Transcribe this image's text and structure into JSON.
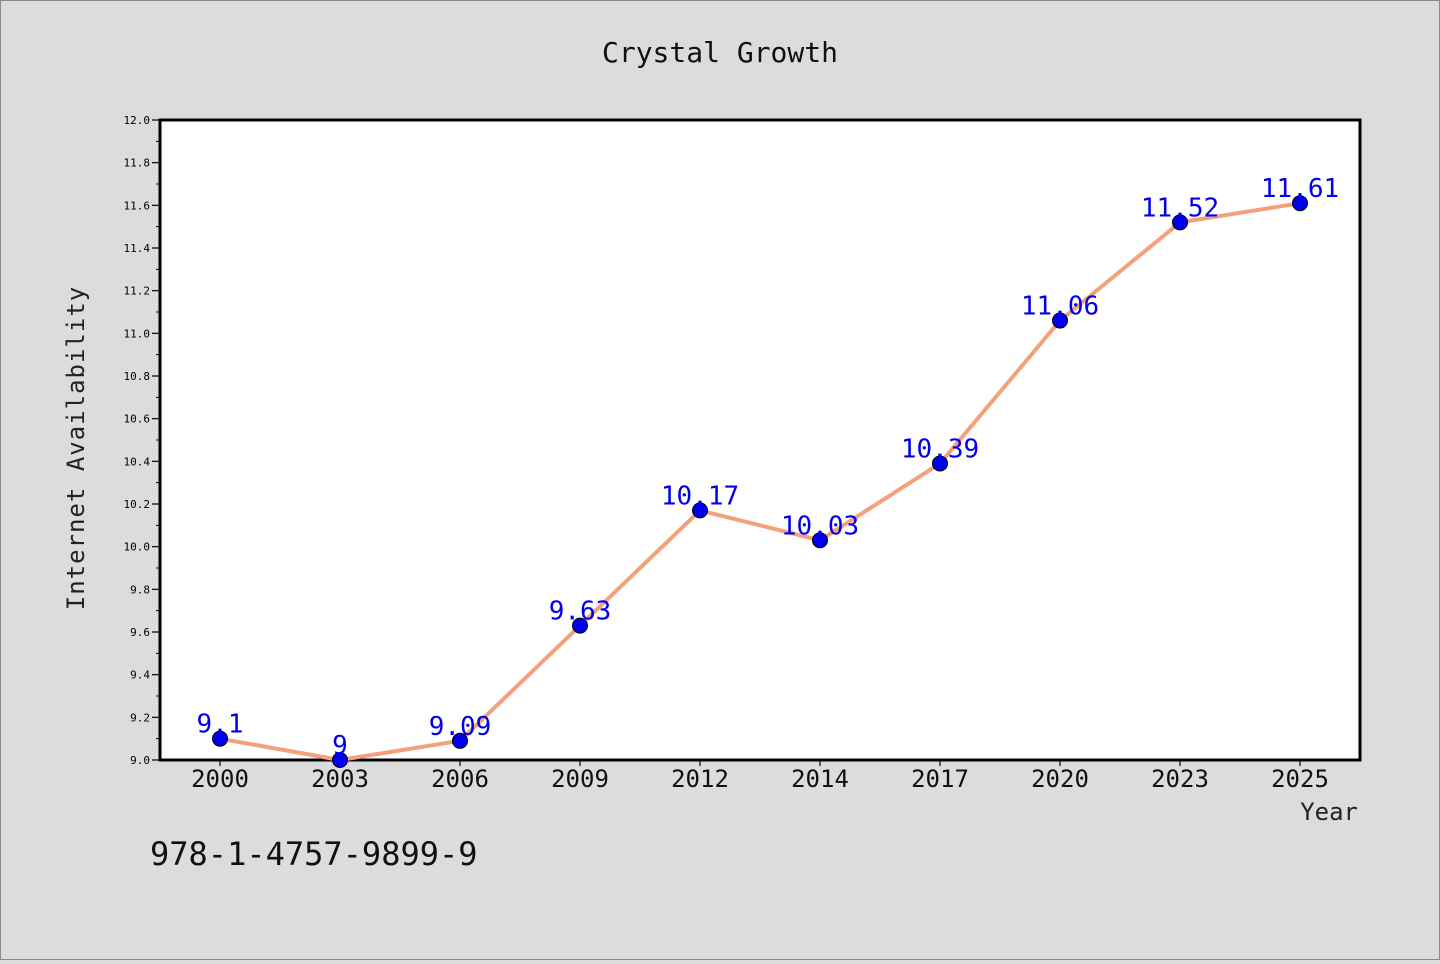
{
  "chart_data": {
    "type": "line",
    "title": "Crystal Growth",
    "xlabel": "Year",
    "ylabel": "Internet Availability",
    "categories": [
      "2000",
      "2003",
      "2006",
      "2009",
      "2012",
      "2014",
      "2017",
      "2020",
      "2023",
      "2025"
    ],
    "series": [
      {
        "values": [
          9.1,
          9.0,
          9.09,
          9.63,
          10.17,
          10.03,
          10.39,
          11.06,
          11.52,
          11.61
        ],
        "labels": [
          "9.1",
          "9",
          "9.09",
          "9.63",
          "10.17",
          "10.03",
          "10.39",
          "11.06",
          "11.52",
          "11.61"
        ],
        "line_color": "#f4a07a",
        "marker_color": "#0000ee"
      }
    ],
    "ylim": [
      9.0,
      12.0
    ],
    "yticks": [
      "9.0",
      "9.2",
      "9.4",
      "9.6",
      "9.8",
      "10.0",
      "10.2",
      "10.4",
      "10.6",
      "10.8",
      "11.0",
      "11.2",
      "11.4",
      "11.6",
      "11.8",
      "12.0"
    ],
    "grid": false,
    "legend": "none",
    "background_color": "#dcdcdc",
    "plot_background_color": "#ffffff",
    "data_label_color": "#0000ee"
  },
  "annotation": "978-1-4757-9899-9"
}
